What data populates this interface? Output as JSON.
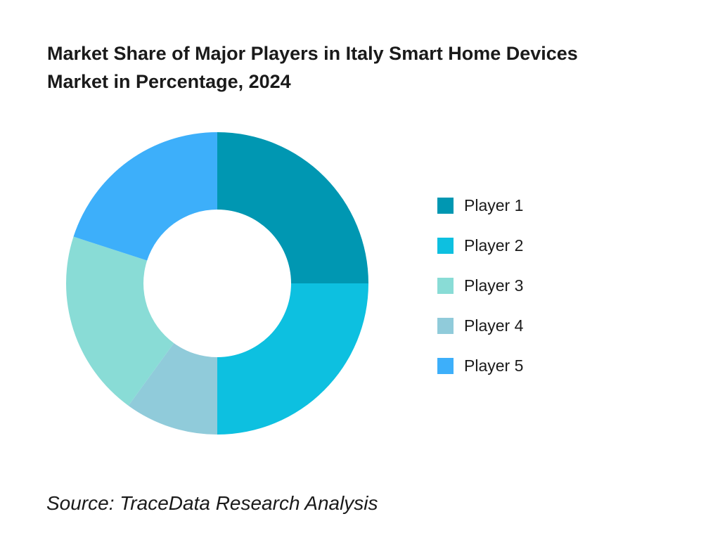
{
  "header": {
    "title_lines": [
      "Market Share of Major Players in Italy Smart Home Devices",
      "Market in Percentage, 2024"
    ]
  },
  "footer": {
    "source": "Source: TraceData Research Analysis"
  },
  "colors": {
    "text": "#1a1a1a",
    "background": "#ffffff"
  },
  "chart_data": {
    "type": "pie",
    "subtype": "donut",
    "title": "Market Share of Major Players in Italy Smart Home Devices Market in Percentage, 2024",
    "unit": "percent",
    "total": 100,
    "slices": [
      {
        "label": "Player 1",
        "value": 25,
        "color": "#0097b2"
      },
      {
        "label": "Player 2",
        "value": 25,
        "color": "#0dc0e0"
      },
      {
        "label": "Player 3",
        "value": 20,
        "color": "#89dcd6"
      },
      {
        "label": "Player 4",
        "value": 10,
        "color": "#90cbda"
      },
      {
        "label": "Player 5",
        "value": 20,
        "color": "#3daffa"
      }
    ],
    "draw_order_clockwise_from_top": [
      "Player 1",
      "Player 2",
      "Player 4",
      "Player 3",
      "Player 5"
    ],
    "start_angle_deg": 0,
    "outer_radius_px": 215,
    "inner_radius_ratio": 0.49,
    "legend_position": "right",
    "data_labels_shown": false
  }
}
